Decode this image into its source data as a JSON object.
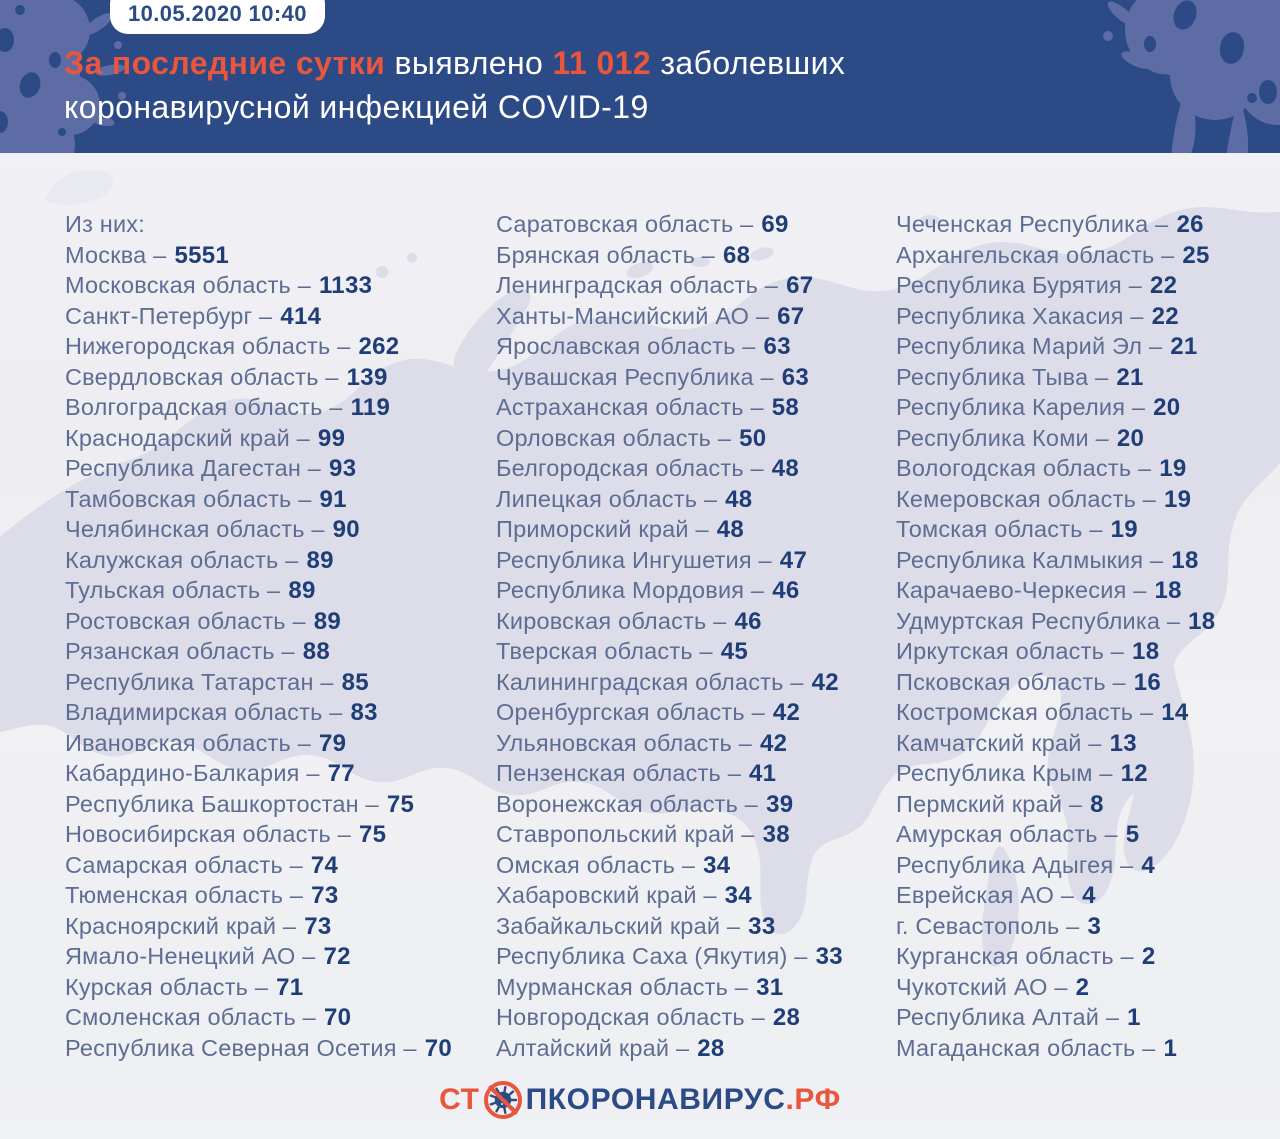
{
  "header": {
    "timestamp": "10.05.2020 10:40",
    "headline": {
      "accent1": "За последние сутки",
      "mid1": " выявлено ",
      "accent2": "11 012",
      "mid2": " заболевших",
      "line2": "коронавирусной инфекцией COVID-19"
    }
  },
  "list": {
    "intro": "Из них:",
    "separator": "–"
  },
  "chart_data": {
    "type": "table",
    "title": "За последние сутки выявлено 11 012 заболевших коронавирусной инфекцией COVID-19",
    "timestamp": "10.05.2020 10:40",
    "total_new_cases": 11012,
    "columns": [
      [
        {
          "region": "Москва",
          "cases": "5551"
        },
        {
          "region": "Московская область",
          "cases": "1133"
        },
        {
          "region": "Санкт-Петербург",
          "cases": "414"
        },
        {
          "region": "Нижегородская область",
          "cases": "262"
        },
        {
          "region": "Свердловская область",
          "cases": "139"
        },
        {
          "region": "Волгоградская область",
          "cases": "119"
        },
        {
          "region": "Краснодарский край",
          "cases": "99"
        },
        {
          "region": "Республика Дагестан",
          "cases": "93"
        },
        {
          "region": "Тамбовская область",
          "cases": "91"
        },
        {
          "region": "Челябинская область",
          "cases": "90"
        },
        {
          "region": "Калужская область",
          "cases": "89"
        },
        {
          "region": "Тульская область",
          "cases": "89"
        },
        {
          "region": "Ростовская область",
          "cases": "89"
        },
        {
          "region": "Рязанская область",
          "cases": "88"
        },
        {
          "region": "Республика Татарстан",
          "cases": "85"
        },
        {
          "region": "Владимирская область",
          "cases": "83"
        },
        {
          "region": "Ивановская область",
          "cases": "79"
        },
        {
          "region": "Кабардино-Балкария",
          "cases": "77"
        },
        {
          "region": "Республика Башкортостан",
          "cases": "75"
        },
        {
          "region": "Новосибирская область",
          "cases": "75"
        },
        {
          "region": "Самарская область",
          "cases": "74"
        },
        {
          "region": "Тюменская область",
          "cases": "73"
        },
        {
          "region": "Красноярский край",
          "cases": "73"
        },
        {
          "region": "Ямало-Ненецкий АО",
          "cases": "72"
        },
        {
          "region": "Курская область",
          "cases": "71"
        },
        {
          "region": "Смоленская область",
          "cases": "70"
        },
        {
          "region": "Республика Северная Осетия",
          "cases": "70"
        }
      ],
      [
        {
          "region": "Саратовская область",
          "cases": "69"
        },
        {
          "region": "Брянская область",
          "cases": "68"
        },
        {
          "region": "Ленинградская область",
          "cases": "67"
        },
        {
          "region": "Ханты-Мансийский АО",
          "cases": "67"
        },
        {
          "region": "Ярославская область",
          "cases": "63"
        },
        {
          "region": "Чувашская Республика",
          "cases": "63"
        },
        {
          "region": "Астраханская область",
          "cases": "58"
        },
        {
          "region": "Орловская область",
          "cases": "50"
        },
        {
          "region": "Белгородская область",
          "cases": "48"
        },
        {
          "region": "Липецкая область",
          "cases": "48"
        },
        {
          "region": "Приморский край",
          "cases": "48"
        },
        {
          "region": "Республика Ингушетия",
          "cases": "47"
        },
        {
          "region": "Республика Мордовия",
          "cases": "46"
        },
        {
          "region": "Кировская область",
          "cases": "46"
        },
        {
          "region": "Тверская область",
          "cases": "45"
        },
        {
          "region": "Калининградская область",
          "cases": "42"
        },
        {
          "region": "Оренбургская область",
          "cases": "42"
        },
        {
          "region": "Ульяновская область",
          "cases": "42"
        },
        {
          "region": "Пензенская область",
          "cases": "41"
        },
        {
          "region": "Воронежская область",
          "cases": "39"
        },
        {
          "region": "Ставропольский край",
          "cases": "38"
        },
        {
          "region": "Омская область",
          "cases": "34"
        },
        {
          "region": "Хабаровский край",
          "cases": "34"
        },
        {
          "region": "Забайкальский край",
          "cases": "33"
        },
        {
          "region": "Республика Саха (Якутия)",
          "cases": "33"
        },
        {
          "region": "Мурманская область",
          "cases": "31"
        },
        {
          "region": "Новгородская область",
          "cases": "28"
        },
        {
          "region": "Алтайский край",
          "cases": "28"
        }
      ],
      [
        {
          "region": "Чеченская Республика",
          "cases": "26"
        },
        {
          "region": "Архангельская область",
          "cases": "25"
        },
        {
          "region": "Республика Бурятия",
          "cases": "22"
        },
        {
          "region": "Республика Хакасия",
          "cases": "22"
        },
        {
          "region": "Республика Марий Эл",
          "cases": "21"
        },
        {
          "region": "Республика Тыва",
          "cases": "21"
        },
        {
          "region": "Республика Карелия",
          "cases": "20"
        },
        {
          "region": "Республика Коми",
          "cases": "20"
        },
        {
          "region": "Вологодская область",
          "cases": "19"
        },
        {
          "region": "Кемеровская область",
          "cases": "19"
        },
        {
          "region": "Томская область",
          "cases": "19"
        },
        {
          "region": "Республика Калмыкия",
          "cases": "18"
        },
        {
          "region": "Карачаево-Черкесия",
          "cases": "18"
        },
        {
          "region": "Удмуртская Республика",
          "cases": "18"
        },
        {
          "region": "Иркутская область",
          "cases": "18"
        },
        {
          "region": "Псковская область",
          "cases": "16"
        },
        {
          "region": "Костромская область",
          "cases": "14"
        },
        {
          "region": "Камчатский край",
          "cases": "13"
        },
        {
          "region": "Республика Крым",
          "cases": "12"
        },
        {
          "region": "Пермский край",
          "cases": "8"
        },
        {
          "region": "Амурская область",
          "cases": "5"
        },
        {
          "region": "Республика Адыгея",
          "cases": "4"
        },
        {
          "region": "Еврейская АО",
          "cases": "4"
        },
        {
          "region": "г. Севастополь",
          "cases": "3"
        },
        {
          "region": "Курганская область",
          "cases": "2"
        },
        {
          "region": "Чукотский АО",
          "cases": "2"
        },
        {
          "region": "Республика Алтай",
          "cases": "1"
        },
        {
          "region": "Магаданская область",
          "cases": "1"
        }
      ]
    ]
  },
  "footer": {
    "logo_prefix": "СТ",
    "logo_middle": "ПКОРОНАВИРУС",
    "logo_suffix": ".РФ",
    "logo_icon": "no-virus-icon"
  },
  "colors": {
    "header_bg": "#2b4a86",
    "accent_orange": "#e8563e",
    "region_name": "#5e6d93",
    "region_value": "#1f3d76",
    "map_fill": "#dcdde8",
    "header_blob": "#5d6ca5",
    "badge_text": "#2b4a86",
    "body_bg": "#f0f1f4",
    "white": "#ffffff"
  }
}
